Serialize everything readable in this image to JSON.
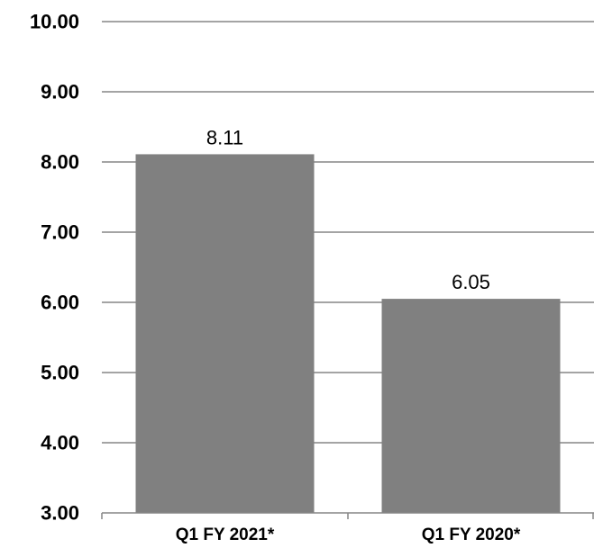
{
  "chart_data": {
    "type": "bar",
    "categories": [
      "Q1 FY 2021*",
      "Q1 FY 2020*"
    ],
    "values": [
      8.11,
      6.05
    ],
    "data_labels": [
      "8.11",
      "6.05"
    ],
    "ylim": [
      3,
      10
    ],
    "yticks": [
      "3.00",
      "4.00",
      "5.00",
      "6.00",
      "7.00",
      "8.00",
      "9.00",
      "10.00"
    ],
    "grid": true,
    "legend": "none",
    "colors": {
      "bar": "#808080",
      "gridline": "#868686",
      "axis": "#868686"
    }
  }
}
